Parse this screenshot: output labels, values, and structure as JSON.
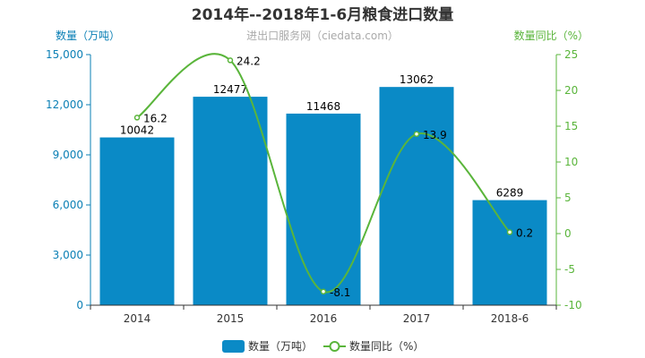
{
  "colors": {
    "bar": "#0a8ac6",
    "line": "#5ab53b",
    "left_axis": "#0a7fb5",
    "right_axis": "#5ab53b"
  },
  "chart_data": {
    "type": "bar",
    "title": "2014年--2018年1-6月粮食进口数量",
    "subtitle": "进出口服务网（ciedata.com）",
    "categories": [
      "2014",
      "2015",
      "2016",
      "2017",
      "2018-6"
    ],
    "y_left": {
      "label": "数量（万吨）",
      "ylim": [
        0,
        15000
      ],
      "ticks": [
        0,
        3000,
        6000,
        9000,
        12000,
        15000
      ],
      "tick_labels": [
        "0",
        "3,000",
        "6,000",
        "9,000",
        "12,000",
        "15,000"
      ]
    },
    "y_right": {
      "label": "数量同比（%）",
      "ylim": [
        -10,
        25
      ],
      "ticks": [
        -10,
        -5,
        0,
        5,
        10,
        15,
        20,
        25
      ],
      "tick_labels": [
        "-10",
        "-5",
        "0",
        "5",
        "10",
        "15",
        "20",
        "25"
      ]
    },
    "series": [
      {
        "name": "数量（万吨）",
        "type": "bar",
        "axis": "left",
        "values": [
          10042,
          12477,
          11468,
          13062,
          6289
        ],
        "labels": [
          "10042",
          "12477",
          "11468",
          "13062",
          "6289"
        ]
      },
      {
        "name": "数量同比（%）",
        "type": "line",
        "axis": "right",
        "smooth": true,
        "values": [
          16.2,
          24.2,
          -8.1,
          13.9,
          0.2
        ],
        "labels": [
          "16.2",
          "24.2",
          "-8.1",
          "13.9",
          "0.2"
        ]
      }
    ],
    "grid": false,
    "legend_position": "bottom-center"
  }
}
